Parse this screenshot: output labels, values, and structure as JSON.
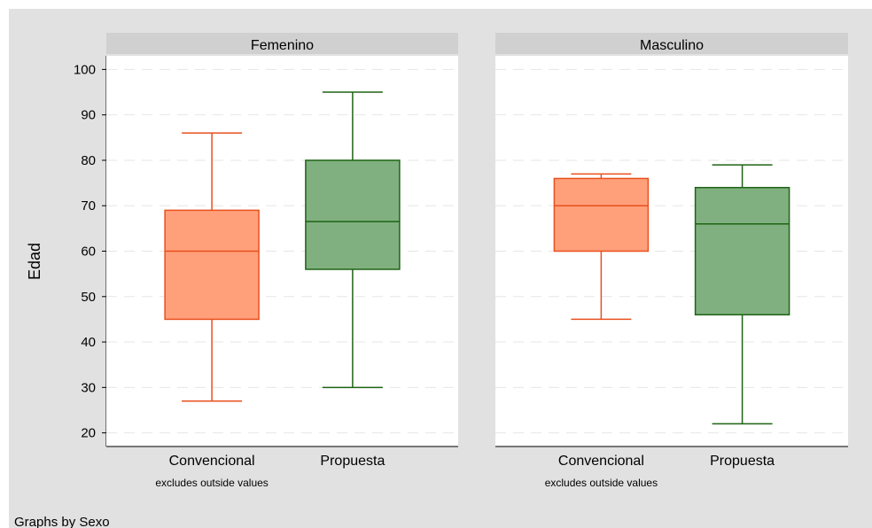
{
  "chart_data": {
    "type": "box",
    "ylabel": "Edad",
    "yticks": [
      20,
      30,
      40,
      50,
      60,
      70,
      80,
      90,
      100
    ],
    "ylim": [
      17,
      103
    ],
    "grid": true,
    "note": "Graphs by Sexo",
    "colors": {
      "Convencional": "#ffa07a",
      "Propuesta": "#80b080"
    },
    "edge_colors": {
      "Convencional": "#e8501e",
      "Propuesta": "#1e6414"
    },
    "panels": [
      {
        "title": "Femenino",
        "subtitle": "excludes outside values",
        "boxes": [
          {
            "category": "Convencional",
            "whisker_low": 27,
            "q1": 45,
            "median": 60,
            "q3": 69,
            "whisker_high": 86
          },
          {
            "category": "Propuesta",
            "whisker_low": 30,
            "q1": 56,
            "median": 66.5,
            "q3": 80,
            "whisker_high": 95
          }
        ]
      },
      {
        "title": "Masculino",
        "subtitle": "excludes outside values",
        "boxes": [
          {
            "category": "Convencional",
            "whisker_low": 45,
            "q1": 60,
            "median": 70,
            "q3": 76,
            "whisker_high": 77
          },
          {
            "category": "Propuesta",
            "whisker_low": 22,
            "q1": 46,
            "median": 66,
            "q3": 74,
            "whisker_high": 79
          }
        ]
      }
    ]
  }
}
